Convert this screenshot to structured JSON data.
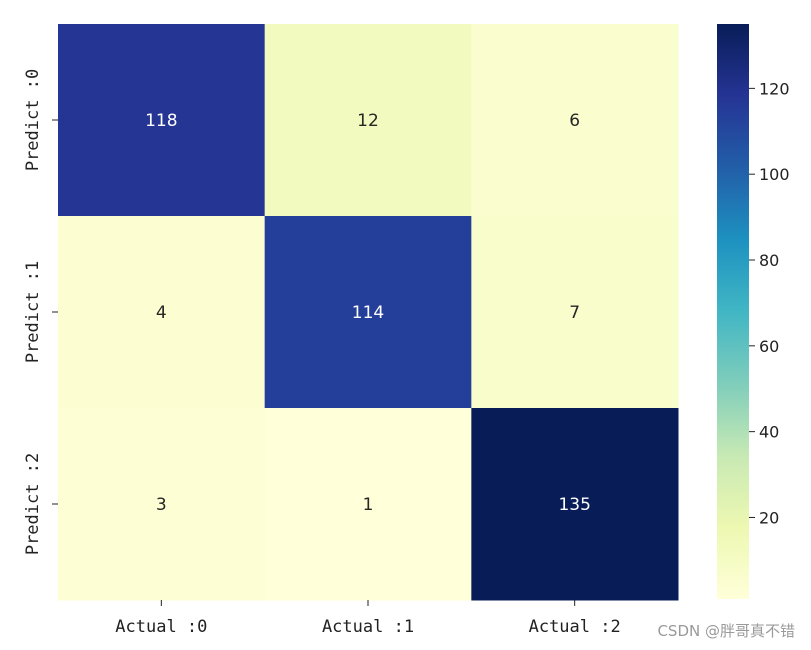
{
  "chart_data": {
    "type": "heatmap",
    "x_categories": [
      "Actual :0",
      "Actual :1",
      "Actual :2"
    ],
    "y_categories": [
      "Predict :0",
      "Predict :1",
      "Predict :2"
    ],
    "values": [
      [
        118,
        12,
        6
      ],
      [
        4,
        114,
        7
      ],
      [
        3,
        1,
        135
      ]
    ],
    "colormap": "YlGnBu",
    "vmin": 1,
    "vmax": 135,
    "colorbar_ticks": [
      20,
      40,
      60,
      80,
      100,
      120
    ]
  },
  "watermark": "CSDN @胖哥真不错"
}
